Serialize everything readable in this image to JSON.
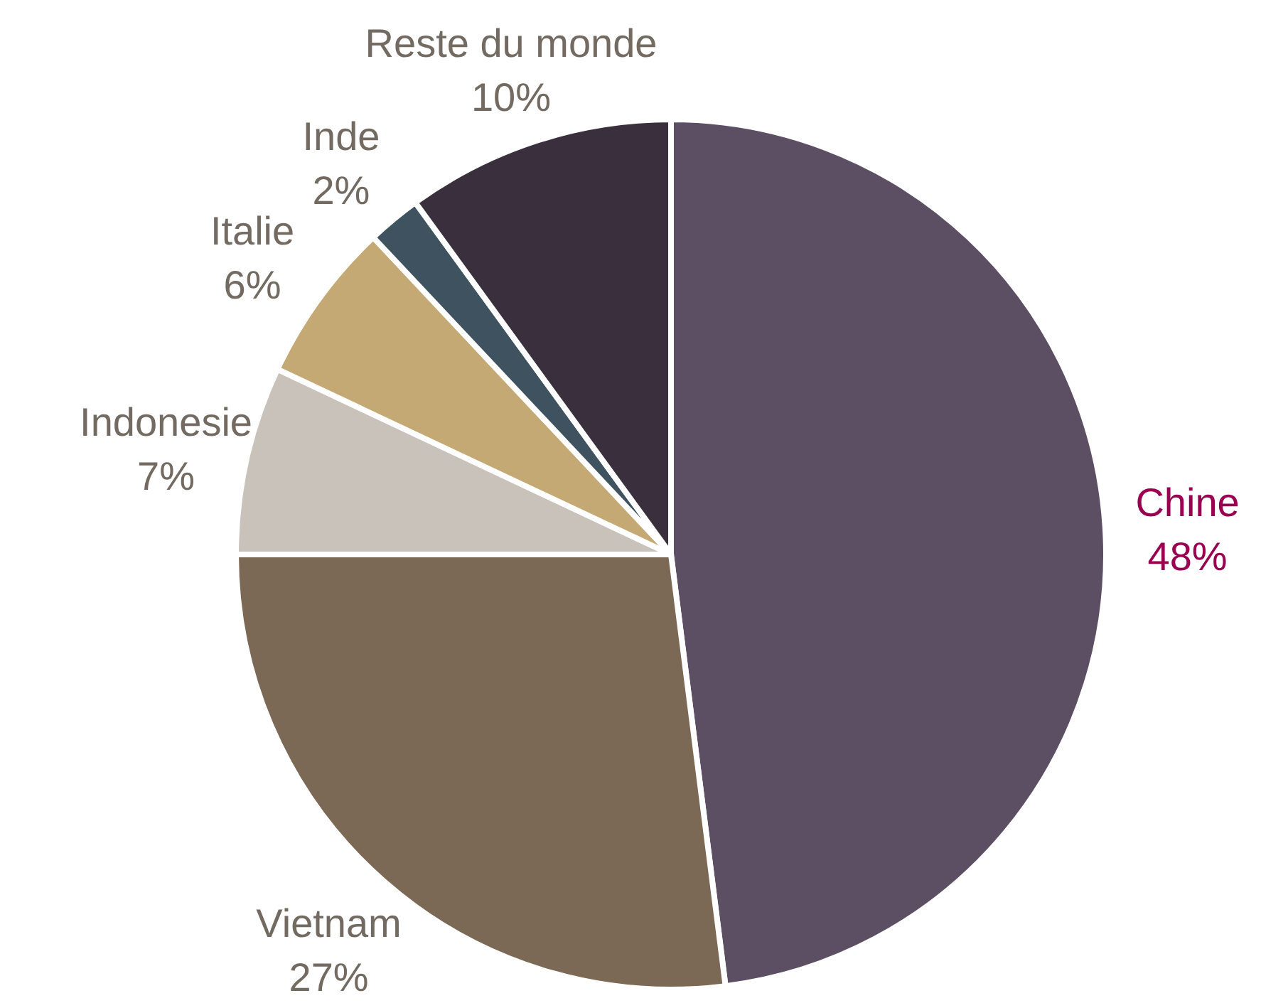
{
  "chart_data": {
    "type": "pie",
    "categories": [
      "Chine",
      "Vietnam",
      "Indonesie",
      "Italie",
      "Inde",
      "Reste du monde"
    ],
    "values": [
      48,
      27,
      7,
      6,
      2,
      10
    ],
    "value_labels": [
      "48%",
      "27%",
      "7%",
      "6%",
      "2%",
      "10%"
    ],
    "colors": [
      "#5c4f63",
      "#7b6855",
      "#c9c2bb",
      "#c5a974",
      "#3f5260",
      "#3a2f3d"
    ]
  }
}
